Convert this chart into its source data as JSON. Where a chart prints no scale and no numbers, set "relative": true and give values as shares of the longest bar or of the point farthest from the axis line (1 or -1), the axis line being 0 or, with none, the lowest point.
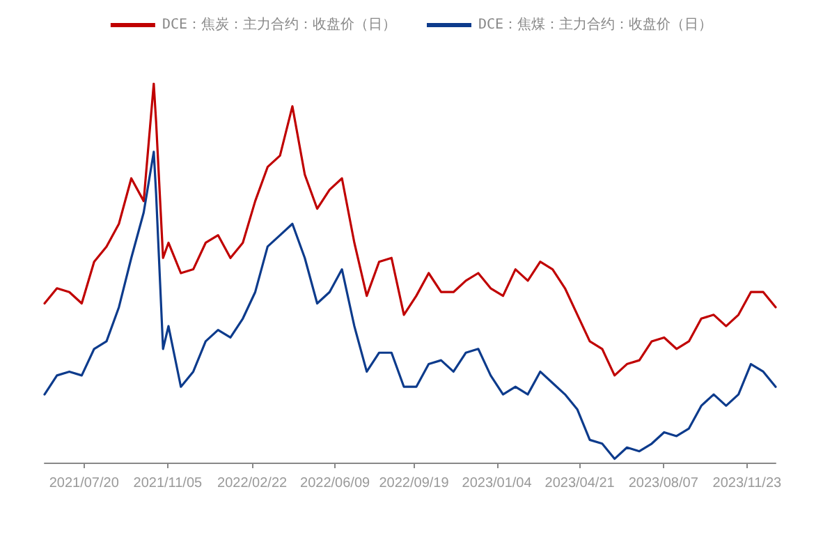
{
  "chart_data": {
    "type": "line",
    "relative": true,
    "legend": "top",
    "x": [
      "2021-05-30",
      "2021-06-15",
      "2021-07-01",
      "2021-07-17",
      "2021-08-02",
      "2021-08-18",
      "2021-09-03",
      "2021-09-19",
      "2021-10-05",
      "2021-10-18",
      "2021-10-21",
      "2021-10-30",
      "2021-11-06",
      "2021-11-22",
      "2021-12-08",
      "2021-12-24",
      "2022-01-09",
      "2022-01-25",
      "2022-02-10",
      "2022-02-26",
      "2022-03-14",
      "2022-03-30",
      "2022-04-15",
      "2022-05-01",
      "2022-05-17",
      "2022-06-02",
      "2022-06-18",
      "2022-07-04",
      "2022-07-20",
      "2022-08-05",
      "2022-08-21",
      "2022-09-06",
      "2022-09-22",
      "2022-10-08",
      "2022-10-24",
      "2022-11-09",
      "2022-11-25",
      "2022-12-11",
      "2022-12-27",
      "2023-01-12",
      "2023-01-28",
      "2023-02-13",
      "2023-03-01",
      "2023-03-17",
      "2023-04-02",
      "2023-04-18",
      "2023-05-04",
      "2023-05-20",
      "2023-06-05",
      "2023-06-21",
      "2023-07-07",
      "2023-07-23",
      "2023-08-08",
      "2023-08-24",
      "2023-09-09",
      "2023-09-25",
      "2023-10-11",
      "2023-10-27",
      "2023-11-12",
      "2023-11-28",
      "2023-12-14",
      "2023-12-30"
    ],
    "xlim": [
      "2021-05-30",
      "2023-12-30"
    ],
    "xticks": [
      {
        "value": "2021-07-20",
        "label": "2021/07/20"
      },
      {
        "value": "2021-11-05",
        "label": "2021/11/05"
      },
      {
        "value": "2022-02-22",
        "label": "2022/02/22"
      },
      {
        "value": "2022-06-09",
        "label": "2022/06/09"
      },
      {
        "value": "2022-09-19",
        "label": "2022/09/19"
      },
      {
        "value": "2023-01-04",
        "label": "2023/01/04"
      },
      {
        "value": "2023-04-21",
        "label": "2023/04/21"
      },
      {
        "value": "2023-08-07",
        "label": "2023/08/07"
      },
      {
        "value": "2023-11-23",
        "label": "2023/11/23"
      }
    ],
    "series": [
      {
        "name": "DCE：焦炭：主力合约：收盘价（日）",
        "color": "#c00000",
        "values": [
          0.42,
          0.46,
          0.45,
          0.42,
          0.53,
          0.57,
          0.63,
          0.75,
          0.69,
          1.0,
          0.9,
          0.54,
          0.58,
          0.5,
          0.51,
          0.58,
          0.6,
          0.54,
          0.58,
          0.69,
          0.78,
          0.81,
          0.94,
          0.76,
          0.67,
          0.72,
          0.75,
          0.58,
          0.44,
          0.53,
          0.54,
          0.39,
          0.44,
          0.5,
          0.45,
          0.45,
          0.48,
          0.5,
          0.46,
          0.44,
          0.51,
          0.48,
          0.53,
          0.51,
          0.46,
          0.39,
          0.32,
          0.3,
          0.23,
          0.26,
          0.27,
          0.32,
          0.33,
          0.3,
          0.32,
          0.38,
          0.39,
          0.36,
          0.39,
          0.45,
          0.45,
          0.41
        ]
      },
      {
        "name": "DCE：焦煤：主力合约：收盘价（日）",
        "color": "#0d3b8c",
        "values": [
          0.18,
          0.23,
          0.24,
          0.23,
          0.3,
          0.32,
          0.41,
          0.54,
          0.66,
          0.82,
          0.71,
          0.3,
          0.36,
          0.2,
          0.24,
          0.32,
          0.35,
          0.33,
          0.38,
          0.45,
          0.57,
          0.6,
          0.63,
          0.54,
          0.42,
          0.45,
          0.51,
          0.36,
          0.24,
          0.29,
          0.29,
          0.2,
          0.2,
          0.26,
          0.27,
          0.24,
          0.29,
          0.3,
          0.23,
          0.18,
          0.2,
          0.18,
          0.24,
          0.21,
          0.18,
          0.14,
          0.06,
          0.05,
          0.01,
          0.04,
          0.03,
          0.05,
          0.08,
          0.07,
          0.09,
          0.15,
          0.18,
          0.15,
          0.18,
          0.26,
          0.24,
          0.2
        ]
      }
    ]
  }
}
